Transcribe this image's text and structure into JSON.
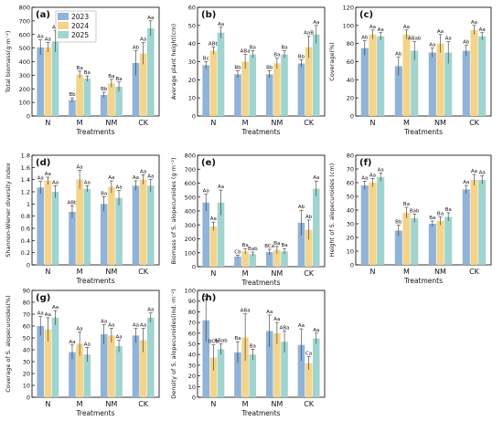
{
  "colors": {
    "2023": "#8fb3d9",
    "2024": "#f3d48a",
    "2025": "#9fd4cf"
  },
  "legend": [
    "2023",
    "2024",
    "2025"
  ],
  "chart_data": [
    {
      "id": "a",
      "panel_label": "(a)",
      "type": "bar",
      "ylabel": "Total biomass(g·m⁻²)",
      "xlabel": "Treatments",
      "categories": [
        "N",
        "M",
        "NM",
        "CK"
      ],
      "ylim": [
        0,
        800
      ],
      "yticks": [
        0,
        100,
        200,
        300,
        400,
        500,
        600,
        700,
        800
      ],
      "series": [
        {
          "name": "2023",
          "values": [
            505,
            118,
            155,
            390
          ],
          "errors": [
            55,
            15,
            20,
            90
          ],
          "labels": [
            "Aa",
            "Bb",
            "Bb",
            "Ab"
          ]
        },
        {
          "name": "2024",
          "values": [
            505,
            305,
            240,
            460
          ],
          "errors": [
            35,
            25,
            30,
            80
          ],
          "labels": [
            "Aa",
            "Ba",
            "Ba",
            "Aa"
          ]
        },
        {
          "name": "2025",
          "values": [
            550,
            275,
            215,
            645
          ],
          "errors": [
            80,
            20,
            35,
            55
          ],
          "labels": [
            "Aa",
            "Ba",
            "Ba",
            "Aa"
          ]
        }
      ]
    },
    {
      "id": "b",
      "panel_label": "(b)",
      "type": "bar",
      "ylabel": "Average plant height(cm)",
      "xlabel": "Treatments",
      "categories": [
        "N",
        "M",
        "NM",
        "CK"
      ],
      "ylim": [
        0,
        60
      ],
      "yticks": [
        0,
        10,
        20,
        30,
        40,
        50,
        60
      ],
      "series": [
        {
          "name": "2023",
          "values": [
            28,
            23,
            23,
            29
          ],
          "errors": [
            2,
            2,
            2,
            2
          ],
          "labels": [
            "Bc",
            "Bb",
            "Bb",
            "Bb"
          ]
        },
        {
          "name": "2024",
          "values": [
            36,
            30,
            29,
            38
          ],
          "errors": [
            2,
            4,
            3,
            6
          ],
          "labels": [
            "ABb",
            "ABa",
            "Ba",
            "AaB"
          ]
        },
        {
          "name": "2025",
          "values": [
            46,
            34,
            34,
            45
          ],
          "errors": [
            3,
            2,
            2,
            5
          ],
          "labels": [
            "Aa",
            "Ba",
            "Ba",
            "Aa"
          ]
        }
      ]
    },
    {
      "id": "c",
      "panel_label": "(c)",
      "type": "bar",
      "ylabel": "Coverage(%)",
      "xlabel": "Treatments",
      "categories": [
        "N",
        "M",
        "NM",
        "CK"
      ],
      "ylim": [
        0,
        120
      ],
      "yticks": [
        0,
        20,
        40,
        60,
        80,
        100,
        120
      ],
      "series": [
        {
          "name": "2023",
          "values": [
            75,
            55,
            70,
            72
          ],
          "errors": [
            8,
            10,
            5,
            6
          ],
          "labels": [
            "Ab",
            "Ab",
            "Aa",
            "Ab"
          ]
        },
        {
          "name": "2024",
          "values": [
            90,
            90,
            80,
            95
          ],
          "errors": [
            5,
            5,
            10,
            5
          ],
          "labels": [
            "Aa",
            "Aa",
            "Aa",
            "Aa"
          ]
        },
        {
          "name": "2025",
          "values": [
            88,
            72,
            70,
            88
          ],
          "errors": [
            4,
            10,
            12,
            4
          ],
          "labels": [
            "Aa",
            "ABab",
            "Aa",
            "Aa"
          ]
        }
      ]
    },
    {
      "id": "d",
      "panel_label": "(d)",
      "type": "bar",
      "ylabel": "Shannon-Wiener diversity index",
      "xlabel": "Treatments",
      "categories": [
        "N",
        "M",
        "NM",
        "CK"
      ],
      "ylim": [
        0,
        1.8
      ],
      "yticks": [
        0,
        0.2,
        0.4,
        0.6,
        0.8,
        1.0,
        1.2,
        1.4,
        1.6,
        1.8
      ],
      "series": [
        {
          "name": "2023",
          "values": [
            1.27,
            0.87,
            1.0,
            1.3
          ],
          "errors": [
            0.1,
            0.1,
            0.12,
            0.08
          ],
          "labels": [
            "Aa",
            "ABb",
            "Ba",
            "Aa"
          ]
        },
        {
          "name": "2024",
          "values": [
            1.38,
            1.4,
            1.28,
            1.4
          ],
          "errors": [
            0.06,
            0.15,
            0.1,
            0.08
          ],
          "labels": [
            "Aa",
            "Aa",
            "Aa",
            "Aa"
          ]
        },
        {
          "name": "2025",
          "values": [
            1.2,
            1.25,
            1.1,
            1.3
          ],
          "errors": [
            0.1,
            0.05,
            0.12,
            0.1
          ],
          "labels": [
            "Aa",
            "Aa",
            "Aa",
            "Aa"
          ]
        }
      ]
    },
    {
      "id": "e",
      "panel_label": "(e)",
      "type": "bar",
      "ylabel": "Biomass of S. alopecuroides (g·m⁻²)",
      "xlabel": "Treatments",
      "categories": [
        "N",
        "M",
        "NM",
        "CK"
      ],
      "ylim": [
        0,
        800
      ],
      "yticks": [
        0,
        100,
        200,
        300,
        400,
        500,
        600,
        700,
        800
      ],
      "series": [
        {
          "name": "2023",
          "values": [
            460,
            72,
            105,
            315
          ],
          "errors": [
            60,
            10,
            20,
            90
          ],
          "labels": [
            "Aa",
            "Cb",
            "BCa",
            "Ab"
          ]
        },
        {
          "name": "2024",
          "values": [
            290,
            110,
            120,
            265
          ],
          "errors": [
            30,
            20,
            25,
            70
          ],
          "labels": [
            "Aa",
            "Ba",
            "Ba",
            "Ab"
          ]
        },
        {
          "name": "2025",
          "values": [
            460,
            90,
            110,
            560
          ],
          "errors": [
            90,
            15,
            20,
            55
          ],
          "labels": [
            "Aa",
            "Bab",
            "Ba",
            "Aa"
          ]
        }
      ]
    },
    {
      "id": "f",
      "panel_label": "(f)",
      "type": "bar",
      "ylabel": "Height of S. alopecuroides (cm)",
      "xlabel": "Treatments",
      "categories": [
        "N",
        "M",
        "NM",
        "CK"
      ],
      "ylim": [
        0,
        80
      ],
      "yticks": [
        0,
        10,
        20,
        30,
        40,
        50,
        60,
        70,
        80
      ],
      "series": [
        {
          "name": "2023",
          "values": [
            58,
            25,
            30,
            55
          ],
          "errors": [
            3,
            4,
            2,
            3
          ],
          "labels": [
            "Aa",
            "Bb",
            "Ba",
            "Aa"
          ]
        },
        {
          "name": "2024",
          "values": [
            60,
            38,
            32,
            62
          ],
          "errors": [
            3,
            4,
            3,
            4
          ],
          "labels": [
            "Aa",
            "Ba",
            "Ba",
            "Aa"
          ]
        },
        {
          "name": "2025",
          "values": [
            64,
            34,
            35,
            62
          ],
          "errors": [
            3,
            3,
            3,
            3
          ],
          "labels": [
            "Aa",
            "Bab",
            "Ba",
            "Aa"
          ]
        }
      ]
    },
    {
      "id": "g",
      "panel_label": "(g)",
      "type": "bar",
      "ylabel": "Coverage of S. alopecuroides(%)",
      "xlabel": "Treatments",
      "categories": [
        "N",
        "M",
        "NM",
        "CK"
      ],
      "ylim": [
        0,
        90
      ],
      "yticks": [
        0,
        10,
        20,
        30,
        40,
        50,
        60,
        70,
        80,
        90
      ],
      "series": [
        {
          "name": "2023",
          "values": [
            60,
            38,
            53,
            52
          ],
          "errors": [
            8,
            6,
            8,
            6
          ],
          "labels": [
            "Aa",
            "Aa",
            "Aa",
            "Aa"
          ]
        },
        {
          "name": "2024",
          "values": [
            57,
            45,
            52,
            48
          ],
          "errors": [
            10,
            10,
            6,
            10
          ],
          "labels": [
            "Aa",
            "Aa",
            "Aa",
            "Aa"
          ]
        },
        {
          "name": "2025",
          "values": [
            67,
            36,
            43,
            67
          ],
          "errors": [
            6,
            6,
            5,
            4
          ],
          "labels": [
            "Aa",
            "Aa",
            "Aa",
            "Aa"
          ]
        }
      ]
    },
    {
      "id": "h",
      "panel_label": "(h)",
      "type": "bar",
      "ylabel": "Density of S. alopecuroides(ind.·m⁻²)",
      "xlabel": "Treatments",
      "categories": [
        "N",
        "M",
        "NM",
        "CK"
      ],
      "ylim": [
        0,
        100
      ],
      "yticks": [
        0,
        10,
        20,
        30,
        40,
        50,
        60,
        70,
        80,
        90,
        100
      ],
      "series": [
        {
          "name": "2023",
          "values": [
            72,
            42,
            62,
            49
          ],
          "errors": [
            20,
            10,
            15,
            15
          ],
          "labels": [
            "Aa",
            "Ba",
            "Aa",
            "Aa"
          ]
        },
        {
          "name": "2024",
          "values": [
            37,
            56,
            60,
            32
          ],
          "errors": [
            12,
            22,
            10,
            6
          ],
          "labels": [
            "BCb",
            "ABa",
            "Aa",
            "Ca"
          ]
        },
        {
          "name": "2025",
          "values": [
            45,
            40,
            52,
            55
          ],
          "errors": [
            5,
            5,
            10,
            5
          ],
          "labels": [
            "ABab",
            "Ba",
            "ABa",
            "Aa"
          ]
        }
      ]
    }
  ]
}
